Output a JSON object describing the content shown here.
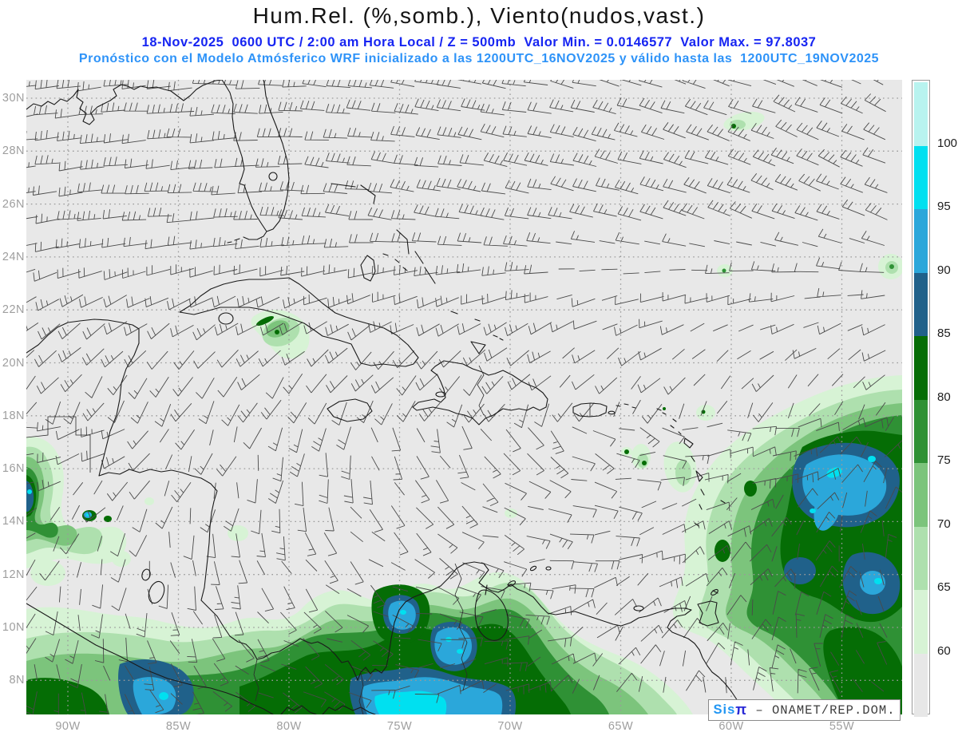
{
  "header": {
    "title": "Hum.Rel. (%,somb.), Viento(nudos,vast.)",
    "line1": "18-Nov-2025  0600 UTC / 2:00 am Hora Local / Z = 500mb  Valor Min. = 0.0146577  Valor Max. = 97.8037",
    "line2": "Pronóstico con el Modelo Atmósferico WRF inicializado a las 1200UTC_16NOV2025 y válido hasta las  1200UTC_19NOV2025"
  },
  "axes": {
    "lat_labels": [
      "30N",
      "28N",
      "26N",
      "24N",
      "22N",
      "20N",
      "18N",
      "16N",
      "14N",
      "12N",
      "10N",
      "8N"
    ],
    "lon_labels": [
      "90W",
      "85W",
      "80W",
      "75W",
      "70W",
      "65W",
      "60W",
      "55W"
    ]
  },
  "colorbar": {
    "tick_labels": [
      "100",
      "95",
      "90",
      "85",
      "80",
      "75",
      "70",
      "65",
      "60"
    ],
    "colors_top_to_bottom": [
      "#b8f3ef",
      "#00e0f0",
      "#2ba7da",
      "#20618a",
      "#056d05",
      "#2f9135",
      "#7cc47c",
      "#aee0ae",
      "#d7f3d5",
      "#e7e7e7"
    ]
  },
  "branding": {
    "sis": "Sis",
    "pi": "π",
    "rest": " – ONAMET/REP.DOM."
  },
  "chart_data": {
    "type": "heatmap",
    "title": "Hum.Rel. (%,somb.), Viento(nudos,vast.)",
    "field": "Humedad relativa (%) sombreada y viento (nudos) en barbas",
    "level": "500mb",
    "valid_time": "18-Nov-2025 0600 UTC / 2:00 am Hora Local",
    "model": "WRF",
    "init_time": "1200UTC_16NOV2025",
    "end_time": "1200UTC_19NOV2025",
    "value_min": 0.0146577,
    "value_max": 97.8037,
    "colorbar_levels": [
      60,
      65,
      70,
      75,
      80,
      85,
      90,
      95,
      100
    ],
    "lat_ticks_deg_n": [
      30,
      28,
      26,
      24,
      22,
      20,
      18,
      16,
      14,
      12,
      10,
      8
    ],
    "lon_ticks_deg_w": [
      90,
      85,
      80,
      75,
      70,
      65,
      60,
      55
    ],
    "legend_position": "right",
    "grid": "dotted"
  }
}
